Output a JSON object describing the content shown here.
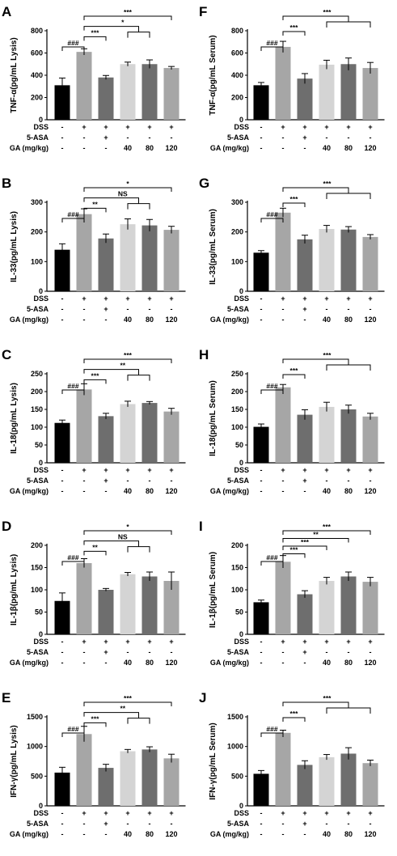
{
  "figure": {
    "group_rows": [
      {
        "label": "DSS",
        "values": [
          "-",
          "+",
          "+",
          "+",
          "+",
          "+"
        ]
      },
      {
        "label": "5-ASA",
        "values": [
          "-",
          "-",
          "+",
          "-",
          "-",
          "-"
        ]
      },
      {
        "label": "GA (mg/kg)",
        "values": [
          "-",
          "-",
          "-",
          "40",
          "80",
          "120"
        ]
      }
    ]
  },
  "chart_data": [
    {
      "panel": "A",
      "type": "bar",
      "ylabel": "TNF-α(pg/mL Lysis)",
      "ylim": [
        0,
        800
      ],
      "yticks": [
        0,
        200,
        400,
        600,
        800
      ],
      "values": [
        310,
        610,
        380,
        500,
        500,
        465
      ],
      "errors": [
        65,
        28,
        18,
        18,
        38,
        14
      ],
      "colors": [
        "#000000",
        "#a6a6a6",
        "#6e6e6e",
        "#d4d4d4",
        "#6e6e6e",
        "#a6a6a6"
      ],
      "annotations": [
        {
          "from": 0,
          "to": 1,
          "text": "###"
        },
        {
          "from": 1,
          "to": 2,
          "text": "***"
        },
        {
          "from": 1,
          "to": [
            3,
            4
          ],
          "text": "*"
        },
        {
          "from": 1,
          "to": 5,
          "text": "***"
        }
      ]
    },
    {
      "panel": "B",
      "type": "bar",
      "ylabel": "IL-33(pg/mL Lysis)",
      "ylim": [
        0,
        300
      ],
      "yticks": [
        0,
        100,
        200,
        300
      ],
      "values": [
        140,
        260,
        178,
        226,
        222,
        207
      ],
      "errors": [
        20,
        18,
        15,
        18,
        20,
        12
      ],
      "colors": [
        "#000000",
        "#a6a6a6",
        "#6e6e6e",
        "#d4d4d4",
        "#6e6e6e",
        "#a6a6a6"
      ],
      "annotations": [
        {
          "from": 0,
          "to": 1,
          "text": "###"
        },
        {
          "from": 1,
          "to": 2,
          "text": "**"
        },
        {
          "from": 1,
          "to": [
            3,
            4
          ],
          "text": "NS"
        },
        {
          "from": 1,
          "to": 5,
          "text": "*"
        }
      ]
    },
    {
      "panel": "C",
      "type": "bar",
      "ylabel": "IL-18(pg/mL Lysis)",
      "ylim": [
        0,
        250
      ],
      "yticks": [
        0,
        50,
        100,
        150,
        200,
        250
      ],
      "values": [
        112,
        206,
        131,
        165,
        168,
        144
      ],
      "errors": [
        8,
        16,
        8,
        8,
        4,
        9
      ],
      "colors": [
        "#000000",
        "#a6a6a6",
        "#6e6e6e",
        "#d4d4d4",
        "#6e6e6e",
        "#a6a6a6"
      ],
      "annotations": [
        {
          "from": 0,
          "to": 1,
          "text": "###"
        },
        {
          "from": 1,
          "to": 2,
          "text": "***"
        },
        {
          "from": 1,
          "to": [
            3,
            4
          ],
          "text": "**"
        },
        {
          "from": 1,
          "to": 5,
          "text": "***"
        }
      ]
    },
    {
      "panel": "D",
      "type": "bar",
      "ylabel": "IL-1β(pg/mL Lysis)",
      "ylim": [
        0,
        200
      ],
      "yticks": [
        0,
        50,
        100,
        150,
        200
      ],
      "values": [
        75,
        160,
        100,
        135,
        130,
        120
      ],
      "errors": [
        18,
        10,
        3,
        4,
        10,
        20
      ],
      "colors": [
        "#000000",
        "#a6a6a6",
        "#6e6e6e",
        "#d4d4d4",
        "#6e6e6e",
        "#a6a6a6"
      ],
      "annotations": [
        {
          "from": 0,
          "to": 1,
          "text": "###"
        },
        {
          "from": 1,
          "to": 2,
          "text": "**"
        },
        {
          "from": 1,
          "to": [
            3,
            4
          ],
          "text": "NS"
        },
        {
          "from": 1,
          "to": 5,
          "text": "*"
        }
      ]
    },
    {
      "panel": "E",
      "type": "bar",
      "ylabel": "IFN-γ(pg/mL Lysis)",
      "ylim": [
        0,
        1500
      ],
      "yticks": [
        0,
        500,
        1000,
        1500
      ],
      "values": [
        560,
        1210,
        640,
        920,
        950,
        800
      ],
      "errors": [
        90,
        130,
        60,
        30,
        45,
        70
      ],
      "colors": [
        "#000000",
        "#a6a6a6",
        "#6e6e6e",
        "#d4d4d4",
        "#6e6e6e",
        "#a6a6a6"
      ],
      "annotations": [
        {
          "from": 0,
          "to": 1,
          "text": "###"
        },
        {
          "from": 1,
          "to": 2,
          "text": "***"
        },
        {
          "from": 1,
          "to": [
            3,
            4
          ],
          "text": "**"
        },
        {
          "from": 1,
          "to": 5,
          "text": "***"
        }
      ]
    },
    {
      "panel": "F",
      "type": "bar",
      "ylabel": "TNF-α(pg/mL Serum)",
      "ylim": [
        0,
        800
      ],
      "yticks": [
        0,
        200,
        400,
        600,
        800
      ],
      "values": [
        310,
        655,
        370,
        495,
        500,
        465
      ],
      "errors": [
        25,
        50,
        45,
        40,
        55,
        50
      ],
      "colors": [
        "#000000",
        "#a6a6a6",
        "#6e6e6e",
        "#d4d4d4",
        "#6e6e6e",
        "#a6a6a6"
      ],
      "annotations": [
        {
          "from": 0,
          "to": 1,
          "text": "###"
        },
        {
          "from": 1,
          "to": 2,
          "text": "***"
        },
        {
          "from": 1,
          "to": [
            3,
            4,
            5
          ],
          "text": "***"
        }
      ]
    },
    {
      "panel": "G",
      "type": "bar",
      "ylabel": "IL-33(pg/mL Serum)",
      "ylim": [
        0,
        300
      ],
      "yticks": [
        0,
        100,
        200,
        300
      ],
      "values": [
        130,
        265,
        175,
        210,
        208,
        183
      ],
      "errors": [
        7,
        15,
        14,
        12,
        10,
        8
      ],
      "colors": [
        "#000000",
        "#a6a6a6",
        "#6e6e6e",
        "#d4d4d4",
        "#6e6e6e",
        "#a6a6a6"
      ],
      "annotations": [
        {
          "from": 0,
          "to": 1,
          "text": "###"
        },
        {
          "from": 1,
          "to": 2,
          "text": "***"
        },
        {
          "from": 1,
          "to": [
            3,
            4,
            5
          ],
          "text": "***"
        }
      ]
    },
    {
      "panel": "H",
      "type": "bar",
      "ylabel": "IL-18(pg/mL Serum)",
      "ylim": [
        0,
        250
      ],
      "yticks": [
        0,
        50,
        100,
        150,
        200,
        250
      ],
      "values": [
        101,
        212,
        135,
        157,
        150,
        130
      ],
      "errors": [
        8,
        8,
        14,
        13,
        12,
        9
      ],
      "colors": [
        "#000000",
        "#a6a6a6",
        "#6e6e6e",
        "#d4d4d4",
        "#6e6e6e",
        "#a6a6a6"
      ],
      "annotations": [
        {
          "from": 0,
          "to": 1,
          "text": "###"
        },
        {
          "from": 1,
          "to": 2,
          "text": "***"
        },
        {
          "from": 1,
          "to": [
            3,
            4,
            5
          ],
          "text": "***"
        }
      ]
    },
    {
      "panel": "I",
      "type": "bar",
      "ylabel": "IL-1β(pg/mL Serum)",
      "ylim": [
        0,
        200
      ],
      "yticks": [
        0,
        50,
        100,
        150,
        200
      ],
      "values": [
        72,
        163,
        90,
        120,
        130,
        118
      ],
      "errors": [
        5,
        14,
        8,
        8,
        10,
        10
      ],
      "colors": [
        "#000000",
        "#a6a6a6",
        "#6e6e6e",
        "#d4d4d4",
        "#6e6e6e",
        "#a6a6a6"
      ],
      "annotations": [
        {
          "from": 0,
          "to": 1,
          "text": "###"
        },
        {
          "from": 1,
          "to": 2,
          "text": "***"
        },
        {
          "from": 1,
          "to": 3,
          "text": "***"
        },
        {
          "from": 1,
          "to": 4,
          "text": "**"
        },
        {
          "from": 1,
          "to": 5,
          "text": "***"
        }
      ]
    },
    {
      "panel": "J",
      "type": "bar",
      "ylabel": "IFN-γ(pg/mL Serum)",
      "ylim": [
        0,
        1500
      ],
      "yticks": [
        0,
        500,
        1000,
        1500
      ],
      "values": [
        540,
        1230,
        690,
        820,
        880,
        720
      ],
      "errors": [
        55,
        45,
        70,
        45,
        100,
        50
      ],
      "colors": [
        "#000000",
        "#a6a6a6",
        "#6e6e6e",
        "#d4d4d4",
        "#6e6e6e",
        "#a6a6a6"
      ],
      "annotations": [
        {
          "from": 0,
          "to": 1,
          "text": "###"
        },
        {
          "from": 1,
          "to": 2,
          "text": "***"
        },
        {
          "from": 1,
          "to": [
            3,
            4,
            5
          ],
          "text": "***"
        }
      ]
    }
  ]
}
